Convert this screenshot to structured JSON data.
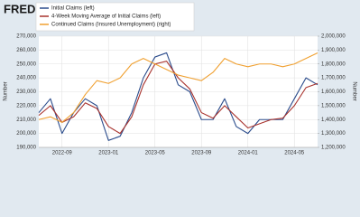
{
  "chart_data": {
    "type": "line",
    "logo": "FRED",
    "y_label": "Number",
    "y2_label": "Number",
    "x": [
      "2022-07",
      "2022-08",
      "2022-09",
      "2022-10",
      "2022-11",
      "2022-12",
      "2023-01",
      "2023-02",
      "2023-03",
      "2023-04",
      "2023-05",
      "2023-06",
      "2023-07",
      "2023-08",
      "2023-09",
      "2023-10",
      "2023-11",
      "2023-12",
      "2024-01",
      "2024-02",
      "2024-03",
      "2024-04",
      "2024-05",
      "2024-06",
      "2024-07"
    ],
    "xlim": [
      "2022-07",
      "2024-07"
    ],
    "xticks": [
      "2022-09",
      "2023-01",
      "2023-05",
      "2023-09",
      "2024-01",
      "2024-05"
    ],
    "ylim": [
      190000,
      270000
    ],
    "yticks": [
      {
        "value": 190000,
        "label": "190,000"
      },
      {
        "value": 200000,
        "label": "200,000"
      },
      {
        "value": 210000,
        "label": "210,000"
      },
      {
        "value": 220000,
        "label": "220,000"
      },
      {
        "value": 230000,
        "label": "230,000"
      },
      {
        "value": 240000,
        "label": "240,000"
      },
      {
        "value": 250000,
        "label": "250,000"
      },
      {
        "value": 260000,
        "label": "260,000"
      },
      {
        "value": 270000,
        "label": "270,000"
      }
    ],
    "y2lim": [
      1200000,
      2000000
    ],
    "y2ticks": [
      {
        "value": 1200000,
        "label": "1,200,000"
      },
      {
        "value": 1300000,
        "label": "1,300,000"
      },
      {
        "value": 1400000,
        "label": "1,400,000"
      },
      {
        "value": 1500000,
        "label": "1,500,000"
      },
      {
        "value": 1600000,
        "label": "1,600,000"
      },
      {
        "value": 1700000,
        "label": "1,700,000"
      },
      {
        "value": 1800000,
        "label": "1,800,000"
      },
      {
        "value": 1900000,
        "label": "1,900,000"
      },
      {
        "value": 2000000,
        "label": "2,000,000"
      }
    ],
    "grid": true,
    "series": [
      {
        "name": "Initial Claims (left)",
        "color": "#2b4c8c",
        "values": [
          215000,
          225000,
          200000,
          215000,
          225000,
          220000,
          195000,
          198000,
          215000,
          240000,
          255000,
          258000,
          235000,
          230000,
          210000,
          210000,
          225000,
          205000,
          200000,
          210000,
          210000,
          210000,
          225000,
          240000,
          235000
        ]
      },
      {
        "name": "4-Week Moving Average of Initial Claims (left)",
        "color": "#a8322d",
        "values": [
          213000,
          220000,
          208000,
          212000,
          222000,
          218000,
          205000,
          200000,
          212000,
          235000,
          250000,
          252000,
          240000,
          232000,
          215000,
          211000,
          220000,
          212000,
          204000,
          207000,
          210000,
          211000,
          220000,
          233000,
          236000
        ]
      },
      {
        "name": "Continued Claims (Insured Unemployment) (right)",
        "color": "#f0a030",
        "axis": "y2",
        "values": [
          1400000,
          1420000,
          1380000,
          1450000,
          1580000,
          1680000,
          1660000,
          1700000,
          1800000,
          1840000,
          1800000,
          1760000,
          1720000,
          1700000,
          1680000,
          1740000,
          1840000,
          1800000,
          1780000,
          1800000,
          1800000,
          1780000,
          1800000,
          1840000,
          1880000
        ]
      }
    ]
  }
}
